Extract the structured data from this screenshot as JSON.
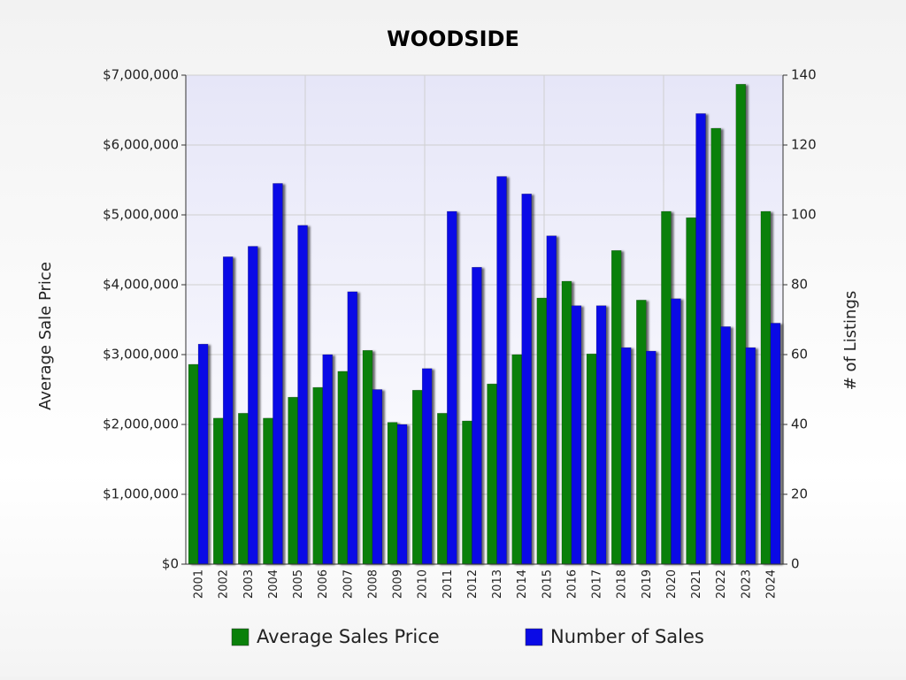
{
  "chart_data": {
    "type": "bar",
    "title": "WOODSIDE",
    "y_label": "Average Sale Price",
    "y2_label": "# of Listings",
    "categories": [
      "2001",
      "2002",
      "2003",
      "2004",
      "2005",
      "2006",
      "2007",
      "2008",
      "2009",
      "2010",
      "2011",
      "2012",
      "2013",
      "2014",
      "2015",
      "2016",
      "2017",
      "2018",
      "2019",
      "2020",
      "2021",
      "2022",
      "2023",
      "2024"
    ],
    "series": [
      {
        "name": "Average Sales Price",
        "color": "#0a800a",
        "values": [
          2860000,
          2090000,
          2160000,
          2090000,
          2390000,
          2530000,
          2760000,
          3060000,
          2030000,
          2490000,
          2160000,
          2050000,
          2580000,
          3000000,
          3810000,
          4050000,
          3010000,
          4490000,
          3780000,
          5050000,
          4960000,
          6240000,
          6870000,
          5050000
        ]
      },
      {
        "name": "Number of Sales",
        "color": "#0a0ae6",
        "axis": "y2",
        "values": [
          63,
          88,
          91,
          109,
          97,
          60,
          78,
          50,
          40,
          56,
          101,
          85,
          111,
          106,
          94,
          74,
          74,
          62,
          61,
          76,
          129,
          68,
          62,
          69
        ]
      }
    ],
    "ylim": [
      0,
      7000000
    ],
    "yticks": [
      {
        "value": 0,
        "label": "$0"
      },
      {
        "value": 1000000,
        "label": "$1,000,000"
      },
      {
        "value": 2000000,
        "label": "$2,000,000"
      },
      {
        "value": 3000000,
        "label": "$3,000,000"
      },
      {
        "value": 4000000,
        "label": "$4,000,000"
      },
      {
        "value": 5000000,
        "label": "$5,000,000"
      },
      {
        "value": 6000000,
        "label": "$6,000,000"
      },
      {
        "value": 7000000,
        "label": "$7,000,000"
      }
    ],
    "y2lim": [
      0,
      140
    ],
    "y2ticks": [
      0,
      20,
      40,
      60,
      80,
      100,
      120,
      140
    ],
    "grid": true,
    "legend": "bottom"
  }
}
